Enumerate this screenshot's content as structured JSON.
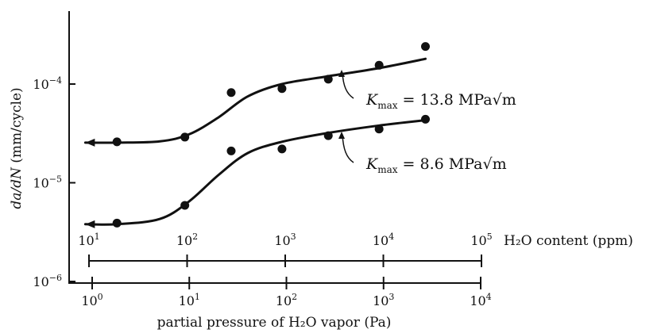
{
  "chart_data": {
    "type": "scatter",
    "y_scale": "log",
    "x_scale": "log",
    "ylabel_italic": "da/dN",
    "ylabel_units": "(mm/cycle)",
    "y_ticks": [
      {
        "value": 1e-06,
        "label": "10",
        "exp": "−6"
      },
      {
        "value": 1e-05,
        "label": "10",
        "exp": "−5"
      },
      {
        "value": 0.0001,
        "label": "10",
        "exp": "−4"
      }
    ],
    "xlabel_pressure": "partial pressure of H₂O vapor (Pa)",
    "x_ticks_pressure": [
      {
        "value": 1,
        "label": "10",
        "exp": "0"
      },
      {
        "value": 10,
        "label": "10",
        "exp": "1"
      },
      {
        "value": 100,
        "label": "10",
        "exp": "2"
      },
      {
        "value": 1000,
        "label": "10",
        "exp": "3"
      },
      {
        "value": 10000,
        "label": "10",
        "exp": "4"
      }
    ],
    "xlabel_content": "H₂O content (ppm)",
    "x_ticks_content": [
      {
        "value": 10,
        "label": "10",
        "exp": "1"
      },
      {
        "value": 100,
        "label": "10",
        "exp": "2"
      },
      {
        "value": 1000,
        "label": "10",
        "exp": "3"
      },
      {
        "value": 10000,
        "label": "10",
        "exp": "4"
      },
      {
        "value": 100000,
        "label": "10",
        "exp": "5"
      }
    ],
    "series": [
      {
        "name": "K_max = 13.8 MPa√m",
        "label_k": "K",
        "label_sub": "max",
        "label_rest": " = 13.8 MPa",
        "label_root": "m",
        "points": [
          {
            "x": 1.8,
            "y": 2.6e-05
          },
          {
            "x": 9,
            "y": 2.9e-05
          },
          {
            "x": 27,
            "y": 8.2e-05
          },
          {
            "x": 90,
            "y": 9e-05
          },
          {
            "x": 270,
            "y": 0.000112
          },
          {
            "x": 900,
            "y": 0.000155
          },
          {
            "x": 2700,
            "y": 0.00024
          }
        ],
        "fit": [
          {
            "x": 0.85,
            "y": 2.55e-05
          },
          {
            "x": 1.8,
            "y": 2.55e-05
          },
          {
            "x": 5,
            "y": 2.63e-05
          },
          {
            "x": 10,
            "y": 3.1e-05
          },
          {
            "x": 20,
            "y": 4.6e-05
          },
          {
            "x": 40,
            "y": 7.5e-05
          },
          {
            "x": 90,
            "y": 0.0001
          },
          {
            "x": 270,
            "y": 0.00012
          },
          {
            "x": 900,
            "y": 0.000145
          },
          {
            "x": 2700,
            "y": 0.00018
          }
        ]
      },
      {
        "name": "K_max = 8.6 MPa√m",
        "label_k": "K",
        "label_sub": "max",
        "label_rest": " = 8.6 MPa",
        "label_root": "m",
        "points": [
          {
            "x": 1.8,
            "y": 3.9e-06
          },
          {
            "x": 9,
            "y": 5.9e-06
          },
          {
            "x": 27,
            "y": 2.1e-05
          },
          {
            "x": 90,
            "y": 2.2e-05
          },
          {
            "x": 270,
            "y": 3e-05
          },
          {
            "x": 900,
            "y": 3.5e-05
          },
          {
            "x": 2700,
            "y": 4.4e-05
          }
        ],
        "fit": [
          {
            "x": 0.85,
            "y": 3.8e-06
          },
          {
            "x": 1.8,
            "y": 3.8e-06
          },
          {
            "x": 5,
            "y": 4.3e-06
          },
          {
            "x": 10,
            "y": 6.5e-06
          },
          {
            "x": 20,
            "y": 1.2e-05
          },
          {
            "x": 40,
            "y": 2e-05
          },
          {
            "x": 90,
            "y": 2.6e-05
          },
          {
            "x": 270,
            "y": 3.2e-05
          },
          {
            "x": 900,
            "y": 3.8e-05
          },
          {
            "x": 2700,
            "y": 4.3e-05
          }
        ]
      }
    ]
  }
}
